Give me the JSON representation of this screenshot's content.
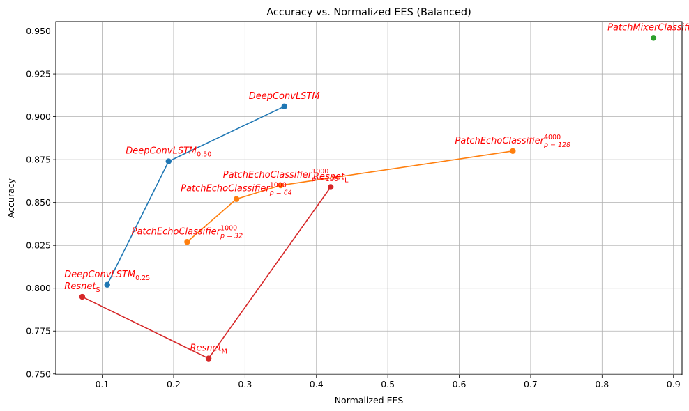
{
  "chart_data": {
    "type": "line",
    "title": "Accuracy vs. Normalized EES (Balanced)",
    "xlabel": "Normalized EES",
    "ylabel": "Accuracy",
    "xlim": [
      0.035,
      0.912
    ],
    "ylim": [
      0.7495,
      0.9555
    ],
    "xticks": [
      0.1,
      0.2,
      0.3,
      0.4,
      0.5,
      0.6,
      0.7,
      0.8,
      0.9
    ],
    "xtick_labels": [
      "0.1",
      "0.2",
      "0.3",
      "0.4",
      "0.5",
      "0.6",
      "0.7",
      "0.8",
      "0.9"
    ],
    "yticks": [
      0.75,
      0.775,
      0.8,
      0.825,
      0.85,
      0.875,
      0.9,
      0.925,
      0.95
    ],
    "ytick_labels": [
      "0.750",
      "0.775",
      "0.800",
      "0.825",
      "0.850",
      "0.875",
      "0.900",
      "0.925",
      "0.950"
    ],
    "grid": true,
    "annotation_color": "#ff0000",
    "series": [
      {
        "color": "#1f77b4",
        "points": [
          {
            "x": 0.107,
            "y": 0.802,
            "label_main": "DeepConvLSTM",
            "label_sub": "0.25",
            "label_sup": ""
          },
          {
            "x": 0.193,
            "y": 0.874,
            "label_main": "DeepConvLSTM",
            "label_sub": "0.50",
            "label_sup": ""
          },
          {
            "x": 0.355,
            "y": 0.906,
            "label_main": "DeepConvLSTM",
            "label_sub": "",
            "label_sup": ""
          }
        ]
      },
      {
        "color": "#ff7f0e",
        "points": [
          {
            "x": 0.219,
            "y": 0.827,
            "label_main": "PatchEchoClassifier",
            "label_sub": "p = 32",
            "label_sup": "1000"
          },
          {
            "x": 0.288,
            "y": 0.852,
            "label_main": "PatchEchoClassifier",
            "label_sub": "p = 64",
            "label_sup": "1000"
          },
          {
            "x": 0.35,
            "y": 0.86,
            "label_main": "PatchEchoClassifier",
            "label_sub": "p = 128",
            "label_sup": "1000"
          },
          {
            "x": 0.675,
            "y": 0.88,
            "label_main": "PatchEchoClassifier",
            "label_sub": "p = 128",
            "label_sup": "4000"
          }
        ]
      },
      {
        "color": "#2ca02c",
        "points": [
          {
            "x": 0.872,
            "y": 0.946,
            "label_main": "PatchMixerClassifier",
            "label_sub": "",
            "label_sup": ""
          }
        ]
      },
      {
        "color": "#d62728",
        "points": [
          {
            "x": 0.072,
            "y": 0.795,
            "label_main": "Resnet",
            "label_sub": "S",
            "label_sup": ""
          },
          {
            "x": 0.249,
            "y": 0.759,
            "label_main": "Resnet",
            "label_sub": "M",
            "label_sup": ""
          },
          {
            "x": 0.42,
            "y": 0.859,
            "label_main": "Resnet",
            "label_sub": "L",
            "label_sup": ""
          }
        ]
      }
    ]
  }
}
